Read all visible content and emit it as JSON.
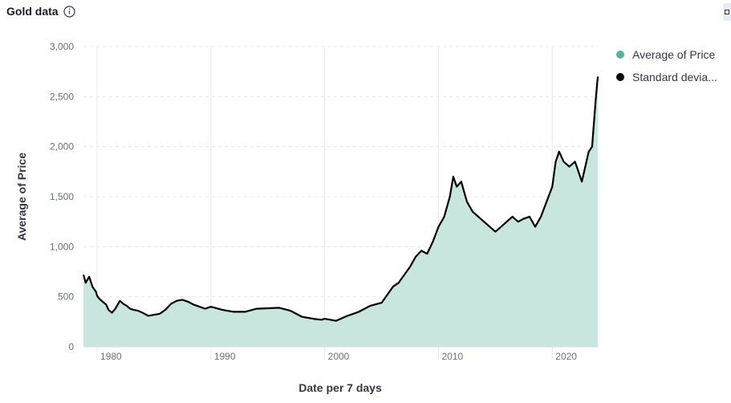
{
  "panel": {
    "title": "Gold data",
    "info_icon": "info-icon",
    "corner_icon": "panel-options-icon"
  },
  "colors": {
    "area_fill": "#c8e6dd",
    "average_series": "#54b399",
    "std_series": "#000000",
    "grid": "#e6e8ee"
  },
  "chart_data": {
    "type": "area",
    "title": "",
    "xlabel": "Date per 7 days",
    "ylabel": "Average of Price",
    "xlim": [
      1978.8,
      2024.0
    ],
    "ylim": [
      0,
      3000
    ],
    "x_ticks": [
      1980,
      1990,
      2000,
      2010,
      2020
    ],
    "x_tick_labels": [
      "1980",
      "1990",
      "2000",
      "2010",
      "2020"
    ],
    "y_ticks": [
      0,
      500,
      1000,
      1500,
      2000,
      2500,
      3000
    ],
    "y_tick_labels": [
      "0",
      "500",
      "1,000",
      "1,500",
      "2,000",
      "2,500",
      "3,000"
    ],
    "grid": true,
    "legend_position": "right",
    "series": [
      {
        "name": "Average of Price",
        "style": "area",
        "x": [
          1978.8,
          1979.0,
          1979.3,
          1979.6,
          1979.9,
          1980.0,
          1980.2,
          1980.5,
          1980.8,
          1981.0,
          1981.3,
          1981.6,
          1982.0,
          1982.3,
          1982.6,
          1982.9,
          1983.2,
          1983.6,
          1984.0,
          1984.5,
          1985.0,
          1985.5,
          1986.0,
          1986.5,
          1987.0,
          1987.5,
          1988.0,
          1988.5,
          1989.0,
          1989.5,
          1990.0,
          1991.0,
          1992.0,
          1993.0,
          1994.0,
          1995.0,
          1996.0,
          1997.0,
          1997.5,
          1998.0,
          1999.0,
          1999.7,
          2000.0,
          2001.0,
          2002.0,
          2003.0,
          2004.0,
          2005.0,
          2006.0,
          2006.5,
          2007.0,
          2007.5,
          2008.0,
          2008.5,
          2009.0,
          2009.5,
          2010.0,
          2010.5,
          2011.0,
          2011.3,
          2011.6,
          2012.0,
          2012.5,
          2013.0,
          2013.5,
          2014.0,
          2014.5,
          2015.0,
          2015.5,
          2016.0,
          2016.5,
          2017.0,
          2017.5,
          2018.0,
          2018.5,
          2019.0,
          2019.5,
          2020.0,
          2020.3,
          2020.6,
          2021.0,
          2021.5,
          2022.0,
          2022.3,
          2022.6,
          2022.9,
          2023.2,
          2023.5,
          2023.8,
          2024.0
        ],
        "values": [
          720,
          640,
          700,
          600,
          550,
          510,
          480,
          450,
          420,
          370,
          340,
          380,
          460,
          430,
          410,
          380,
          370,
          360,
          340,
          310,
          320,
          330,
          370,
          430,
          460,
          470,
          450,
          420,
          400,
          380,
          400,
          370,
          350,
          350,
          380,
          385,
          390,
          360,
          330,
          300,
          280,
          270,
          280,
          260,
          310,
          350,
          410,
          440,
          600,
          640,
          720,
          800,
          900,
          960,
          930,
          1050,
          1200,
          1300,
          1500,
          1700,
          1600,
          1650,
          1450,
          1350,
          1300,
          1250,
          1200,
          1150,
          1200,
          1250,
          1300,
          1250,
          1280,
          1300,
          1200,
          1300,
          1450,
          1600,
          1850,
          1950,
          1850,
          1800,
          1850,
          1750,
          1650,
          1800,
          1950,
          2000,
          2450,
          2700
        ]
      },
      {
        "name": "Standard devia...",
        "style": "line",
        "x": [],
        "values": []
      }
    ]
  }
}
